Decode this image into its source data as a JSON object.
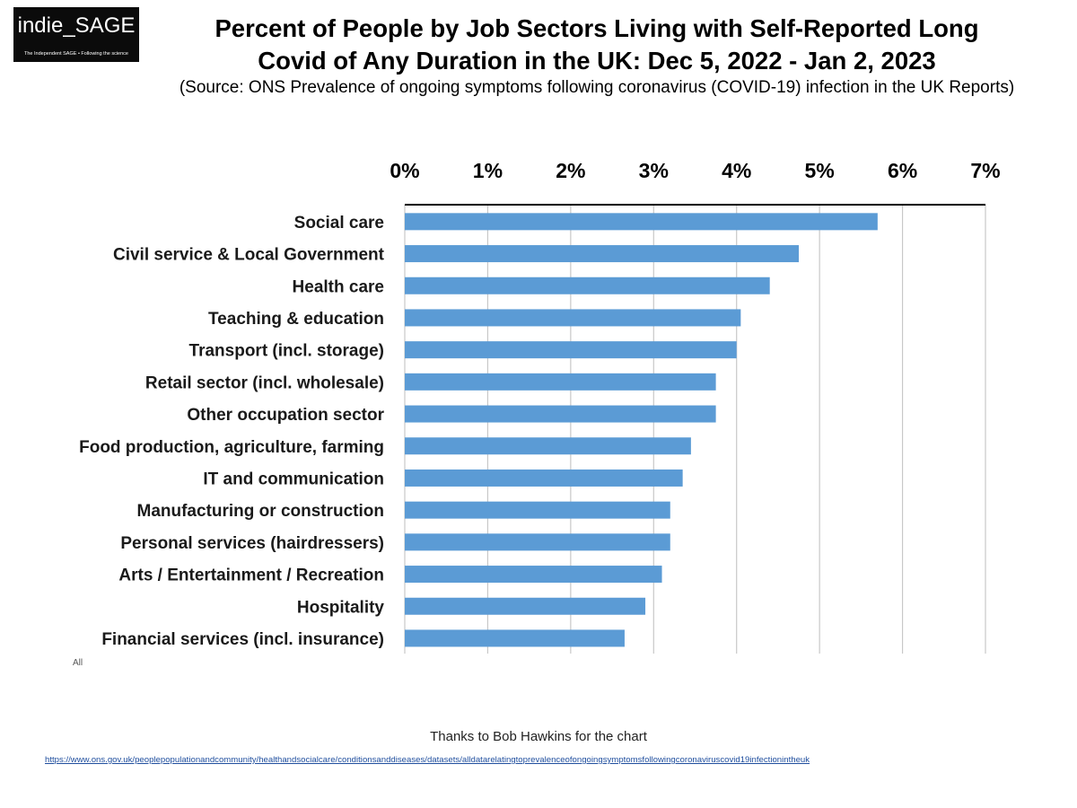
{
  "logo": {
    "name": "indie_SAGE",
    "tagline": "The Independent SAGE • Following the science",
    "background": "#0b0b0b"
  },
  "header": {
    "title_line1": "Percent of People by Job Sectors Living with Self-Reported Long",
    "title_line2": "Covid of Any Duration in the UK: Dec 5, 2022 - Jan 2, 2023",
    "subtitle": "(Source: ONS Prevalence of ongoing symptoms following coronavirus (COVID-19) infection in the UK Reports)"
  },
  "chart_data": {
    "type": "bar",
    "orientation": "horizontal",
    "categories": [
      "Social care",
      "Civil service & Local Government",
      "Health care",
      "Teaching & education",
      "Transport (incl. storage)",
      "Retail sector (incl. wholesale)",
      "Other occupation sector",
      "Food production, agriculture, farming",
      "IT and communication",
      "Manufacturing or construction",
      "Personal services (hairdressers)",
      "Arts / Entertainment / Recreation",
      "Hospitality",
      "Financial services (incl. insurance)"
    ],
    "values": [
      5.7,
      4.75,
      4.4,
      4.05,
      4.0,
      3.75,
      3.75,
      3.45,
      3.35,
      3.2,
      3.2,
      3.1,
      2.9,
      2.65
    ],
    "unit": "%",
    "xlim": [
      0,
      7
    ],
    "ticks": [
      "0%",
      "1%",
      "2%",
      "3%",
      "4%",
      "5%",
      "6%",
      "7%"
    ],
    "x_axis_position": "top",
    "grid": "vertical",
    "bar_color": "#5b9bd5",
    "legend": "none"
  },
  "footer": {
    "corner_mark": "All",
    "credit": "Thanks to Bob Hawkins for the chart",
    "source_url": "https://www.ons.gov.uk/peoplepopulationandcommunity/healthandsocialcare/conditionsanddiseases/datasets/alldatarelatingtoprevalenceofongoingsymptomsfollowingcoronaviruscovid19infectionintheuk"
  }
}
